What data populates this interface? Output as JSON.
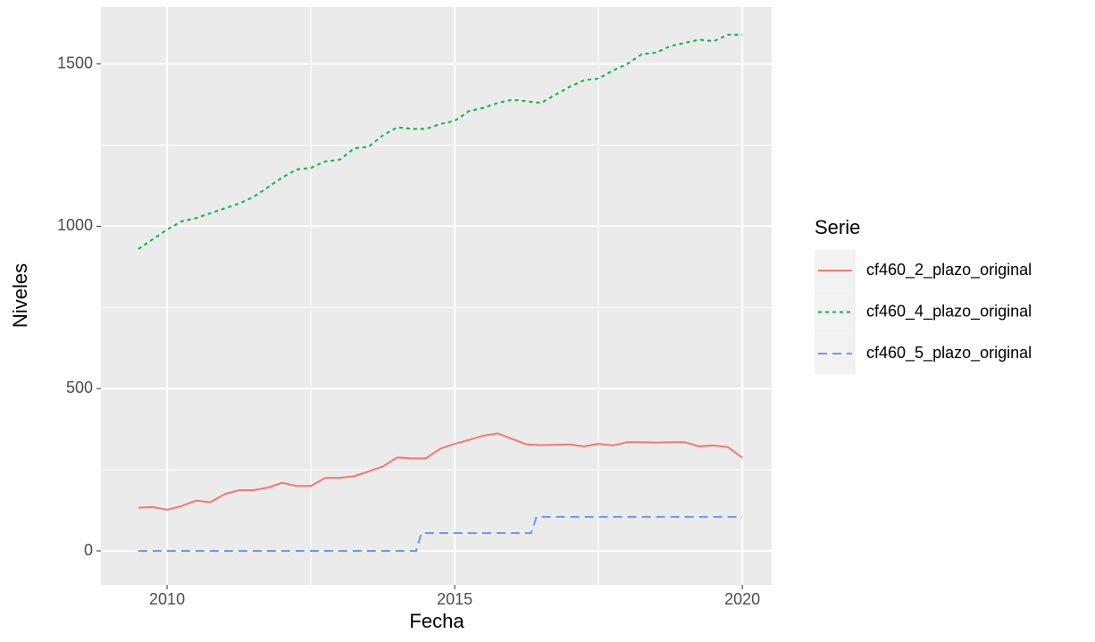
{
  "chart_data": {
    "type": "line",
    "x_label": "Fecha",
    "y_label": "Niveles",
    "legend_title": "Serie",
    "xlim": [
      2008.85,
      2020.51
    ],
    "xticks": [
      2010,
      2015,
      2020
    ],
    "ylim": [
      -104.5,
      1675
    ],
    "yticks": [
      0,
      500,
      1000,
      1500
    ],
    "grid": true,
    "legend_position": "right",
    "series": [
      {
        "name": "cf460_2_plazo_original",
        "color": "#f8766d",
        "dash": "solid",
        "x": [
          2009.5,
          2009.75,
          2010,
          2010.25,
          2010.5,
          2010.75,
          2011,
          2011.25,
          2011.5,
          2011.75,
          2012,
          2012.25,
          2012.5,
          2012.75,
          2013,
          2013.25,
          2013.5,
          2013.75,
          2014,
          2014.25,
          2014.5,
          2014.75,
          2015,
          2015.25,
          2015.5,
          2015.75,
          2016,
          2016.25,
          2016.5,
          2016.75,
          2017,
          2017.25,
          2017.5,
          2017.75,
          2018,
          2018.25,
          2018.5,
          2018.75,
          2019,
          2019.25,
          2019.5,
          2019.75,
          2020
        ],
        "values": [
          133,
          135,
          127,
          138,
          155,
          150,
          175,
          187,
          187,
          195,
          210,
          200,
          200,
          225,
          225,
          230,
          245,
          260,
          288,
          285,
          285,
          315,
          330,
          342,
          355,
          362,
          345,
          328,
          326,
          327,
          328,
          322,
          330,
          325,
          335,
          335,
          334,
          335,
          335,
          322,
          325,
          320,
          287
        ]
      },
      {
        "name": "cf460_4_plazo_original",
        "color": "#00ba38",
        "dash": "dotted",
        "x": [
          2009.5,
          2009.75,
          2010,
          2010.25,
          2010.5,
          2010.75,
          2011,
          2011.25,
          2011.5,
          2011.75,
          2012,
          2012.25,
          2012.5,
          2012.75,
          2013,
          2013.25,
          2013.5,
          2013.75,
          2014,
          2014.25,
          2014.5,
          2014.75,
          2015,
          2015.25,
          2015.5,
          2015.75,
          2016,
          2016.25,
          2016.5,
          2016.75,
          2017,
          2017.25,
          2017.5,
          2017.75,
          2018,
          2018.25,
          2018.5,
          2018.75,
          2019,
          2019.25,
          2019.5,
          2019.75,
          2020
        ],
        "values": [
          930,
          960,
          990,
          1015,
          1025,
          1040,
          1055,
          1070,
          1090,
          1120,
          1150,
          1175,
          1180,
          1200,
          1205,
          1240,
          1245,
          1280,
          1305,
          1300,
          1300,
          1315,
          1325,
          1355,
          1365,
          1380,
          1390,
          1385,
          1380,
          1405,
          1430,
          1450,
          1455,
          1480,
          1500,
          1530,
          1535,
          1555,
          1565,
          1575,
          1570,
          1590,
          1590
        ]
      },
      {
        "name": "cf460_5_plazo_original",
        "color": "#619cff",
        "dash": "dashed",
        "x": [
          2009.5,
          2014.33,
          2014.42,
          2016.33,
          2016.42,
          2020
        ],
        "values": [
          0,
          0,
          55,
          55,
          105,
          105
        ]
      }
    ]
  }
}
